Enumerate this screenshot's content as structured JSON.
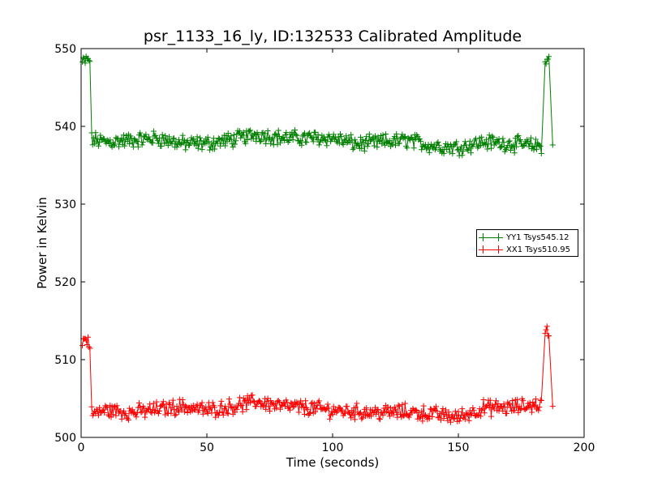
{
  "chart_data": {
    "type": "line",
    "title": "psr_1133_16_ly, ID:132533 Calibrated Amplitude",
    "xlabel": "Time (seconds)",
    "ylabel": "Power in Kelvin",
    "xlim": [
      0,
      200
    ],
    "ylim": [
      500,
      550
    ],
    "xticks": [
      "0",
      "50",
      "100",
      "150",
      "200"
    ],
    "yticks": [
      "500",
      "510",
      "520",
      "530",
      "540",
      "550"
    ],
    "grid": false,
    "legend_position": "right",
    "marker": "plus",
    "series": [
      {
        "name": "YY1 Tsys545.12",
        "color": "#008000",
        "x": [
          0.5,
          2,
          3.5,
          4.2,
          10,
          20,
          30,
          40,
          50,
          60,
          70,
          80,
          90,
          100,
          110,
          120,
          130,
          140,
          150,
          160,
          170,
          180,
          183,
          184.5,
          186,
          187.5
        ],
        "y": [
          548.2,
          548.4,
          548.6,
          538.3,
          538.0,
          538.2,
          538.5,
          537.8,
          537.8,
          538.3,
          539.0,
          538.5,
          538.5,
          538.5,
          537.7,
          538.0,
          538.2,
          537.5,
          537.3,
          538.0,
          537.8,
          537.5,
          537.5,
          548.4,
          548.5,
          537.6
        ]
      },
      {
        "name": "XX1 Tsys510.95",
        "color": "#ff0000",
        "x": [
          0.5,
          2,
          3.5,
          4.2,
          10,
          20,
          30,
          40,
          50,
          60,
          70,
          80,
          90,
          100,
          110,
          120,
          130,
          140,
          150,
          160,
          170,
          180,
          183,
          184.5,
          186,
          187.5
        ],
        "y": [
          512.4,
          512.6,
          512.2,
          503.0,
          503.5,
          503.2,
          503.6,
          504.0,
          503.5,
          504.0,
          504.6,
          504.0,
          503.8,
          503.5,
          503.3,
          503.2,
          503.3,
          503.0,
          502.6,
          503.8,
          503.8,
          504.2,
          504.2,
          513.5,
          513.6,
          504.0
        ]
      }
    ]
  }
}
